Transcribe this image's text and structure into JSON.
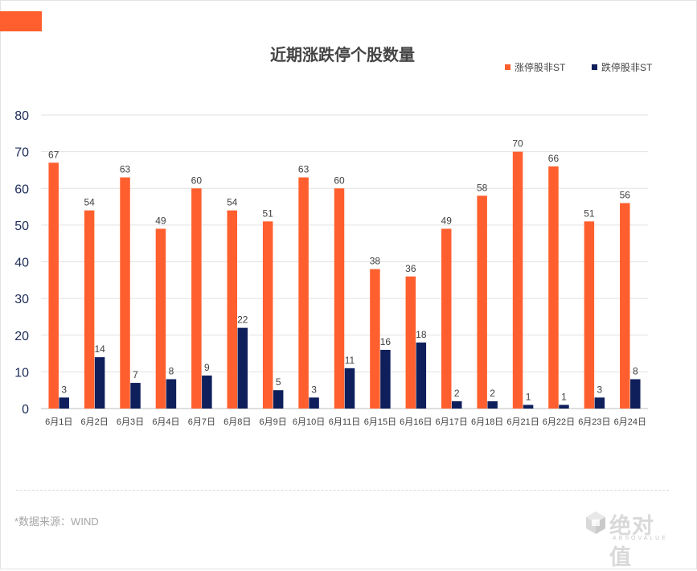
{
  "header": {
    "accent_color": "#ff5f2e"
  },
  "footer": {
    "source": "*数据来源：WIND",
    "logo_text": "绝对值",
    "logo_sub": "ABSOVALUE",
    "logo_icon": "absovalue-cube-icon"
  },
  "chart_data": {
    "type": "bar",
    "title": "近期涨跌停个股数量",
    "xlabel": "",
    "ylabel": "",
    "ylim": [
      0,
      80
    ],
    "yticks": [
      0,
      10,
      20,
      30,
      40,
      50,
      60,
      70,
      80
    ],
    "grid": true,
    "legend_position": "top-right",
    "categories": [
      "6月1日",
      "6月2日",
      "6月3日",
      "6月4日",
      "6月7日",
      "6月8日",
      "6月9日",
      "6月10日",
      "6月11日",
      "6月15日",
      "6月16日",
      "6月17日",
      "6月18日",
      "6月21日",
      "6月22日",
      "6月23日",
      "6月24日"
    ],
    "series": [
      {
        "name": "涨停股非ST",
        "color": "#ff5f2e",
        "values": [
          67,
          54,
          63,
          49,
          60,
          54,
          51,
          63,
          60,
          38,
          36,
          49,
          58,
          70,
          66,
          51,
          56
        ]
      },
      {
        "name": "跌停股非ST",
        "color": "#0f1f5c",
        "values": [
          3,
          14,
          7,
          8,
          9,
          22,
          5,
          3,
          11,
          16,
          18,
          2,
          2,
          1,
          1,
          3,
          8
        ]
      }
    ]
  }
}
